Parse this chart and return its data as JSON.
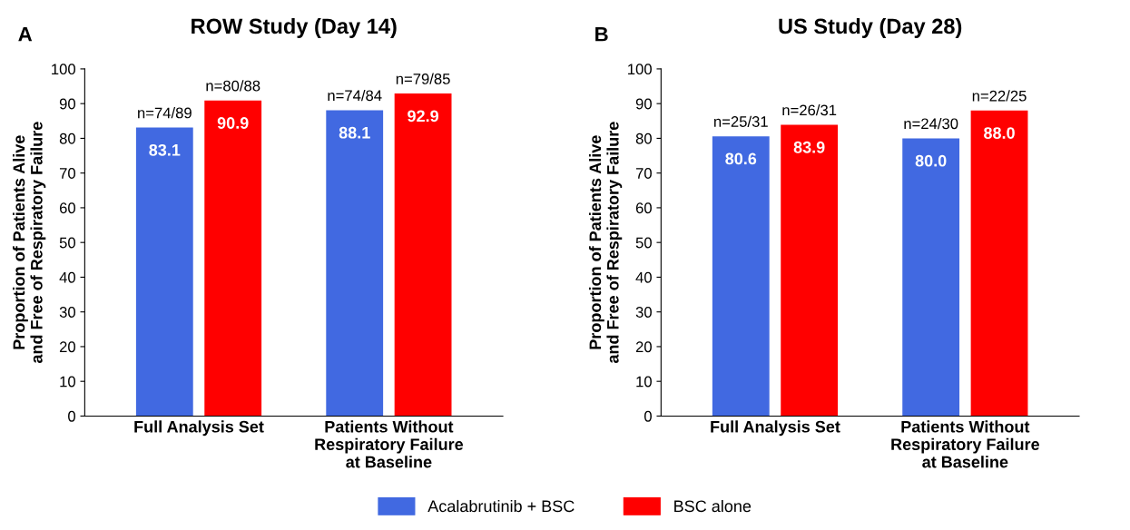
{
  "chart_data": [
    {
      "type": "bar",
      "title": "ROW Study (Day 14)",
      "ylabel": "Proportion of Patients Alive\nand Free of Respiratory Failure",
      "categories": [
        "Full Analysis Set",
        "Patients Without\nRespiratory Failure\nat Baseline"
      ],
      "series": [
        {
          "name": "Acalabrutinib + BSC",
          "color": "#4169e1",
          "values": [
            83.1,
            88.1
          ],
          "value_labels": [
            "83.1",
            "88.1"
          ]
        },
        {
          "name": "BSC alone",
          "color": "#ff0000",
          "values": [
            90.9,
            92.9
          ],
          "value_labels": [
            "90.9",
            "92.9"
          ]
        }
      ],
      "annotations": [
        "A",
        "n=74/89",
        "n=80/88",
        "n=74/84",
        "n=79/85"
      ],
      "ylim": [
        0,
        100
      ],
      "yticks": [
        0,
        10,
        20,
        30,
        40,
        50,
        60,
        70,
        80,
        90,
        100
      ],
      "grid": false,
      "legend": "bottom"
    },
    {
      "type": "bar",
      "title": "US Study (Day 28)",
      "ylabel": "Proportion of Patients Alive\nand Free of Respiratory Failure",
      "categories": [
        "Full Analysis Set",
        "Patients Without\nRespiratory Failure\nat Baseline"
      ],
      "series": [
        {
          "color": "#4169e1",
          "values": [
            80.6,
            80.0
          ],
          "value_labels": [
            "80.6",
            "80.0"
          ]
        },
        {
          "color": "#ff0000",
          "values": [
            83.9,
            88.0
          ],
          "value_labels": [
            "83.9",
            "88.0"
          ]
        }
      ],
      "annotations": [
        "B",
        "n=25/31",
        "n=26/31",
        "n=24/30",
        "n=22/25"
      ],
      "ylim": [
        0,
        100
      ],
      "yticks": [
        0,
        10,
        20,
        30,
        40,
        50,
        60,
        70,
        80,
        90,
        100
      ],
      "grid": false
    }
  ]
}
